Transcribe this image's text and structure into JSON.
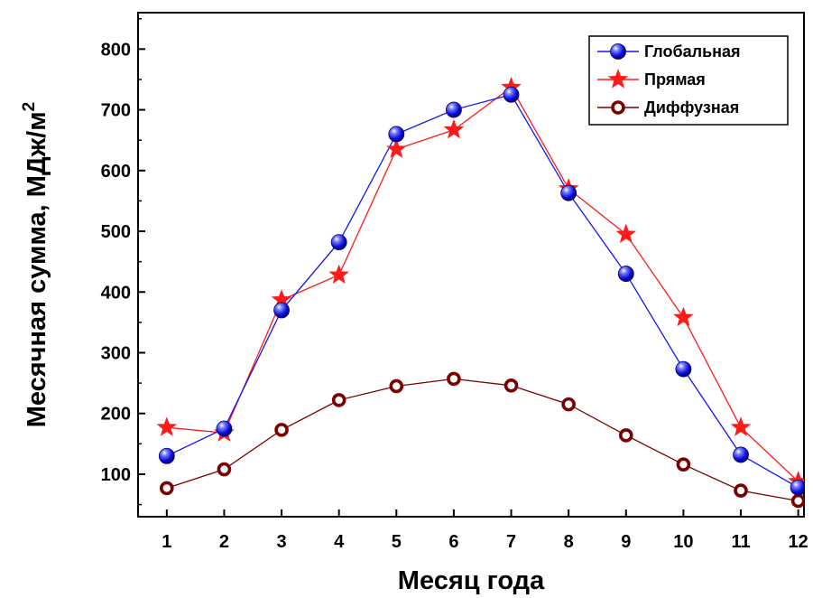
{
  "colors": {
    "global": "#1515ee",
    "direct": "#ff1a1a",
    "diffuse": "#7a0000",
    "axis": "#000000"
  },
  "chart_data": {
    "type": "line",
    "title": "",
    "xlabel": "Месяц года",
    "ylabel": "Месячная сумма, МДж/м",
    "ylabel_superscript": "2",
    "x": [
      1,
      2,
      3,
      4,
      5,
      6,
      7,
      8,
      9,
      10,
      11,
      12
    ],
    "xlim": [
      0.5,
      12.1
    ],
    "ylim": [
      30,
      860
    ],
    "yticks": [
      100,
      200,
      300,
      400,
      500,
      600,
      700,
      800
    ],
    "legend_position": "top-right",
    "grid": false,
    "series": [
      {
        "name": "Глобальная",
        "marker": "sphere",
        "color_key": "global",
        "values": [
          130,
          175,
          370,
          482,
          660,
          700,
          725,
          563,
          430,
          273,
          132,
          78
        ]
      },
      {
        "name": "Прямая",
        "marker": "star",
        "color_key": "direct",
        "values": [
          177,
          168,
          387,
          428,
          635,
          667,
          737,
          570,
          495,
          358,
          177,
          88
        ]
      },
      {
        "name": "Диффузная",
        "marker": "ring",
        "color_key": "diffuse",
        "values": [
          77,
          108,
          173,
          222,
          245,
          257,
          246,
          215,
          164,
          116,
          73,
          56
        ]
      }
    ]
  }
}
